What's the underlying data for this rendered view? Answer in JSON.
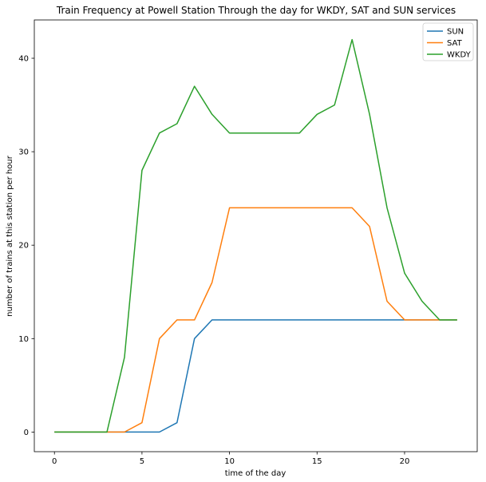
{
  "chart_data": {
    "type": "line",
    "title": "Train Frequency at Powell Station Through the day for WKDY, SAT and SUN services",
    "xlabel": "time of the day",
    "ylabel": "number of trains at this station per hour",
    "x": [
      0,
      1,
      2,
      3,
      4,
      5,
      6,
      7,
      8,
      9,
      10,
      11,
      12,
      13,
      14,
      15,
      16,
      17,
      18,
      19,
      20,
      21,
      22,
      23
    ],
    "xlim": [
      -1.15,
      24.15
    ],
    "ylim": [
      -2.1,
      44.1
    ],
    "xticks": [
      0,
      5,
      10,
      15,
      20
    ],
    "yticks": [
      0,
      10,
      20,
      30,
      40
    ],
    "grid": false,
    "legend_position": "top-right",
    "series": [
      {
        "name": "SUN",
        "color": "#1f77b4",
        "values": [
          0,
          0,
          0,
          0,
          0,
          0,
          0,
          1,
          10,
          12,
          12,
          12,
          12,
          12,
          12,
          12,
          12,
          12,
          12,
          12,
          12,
          12,
          12,
          12
        ]
      },
      {
        "name": "SAT",
        "color": "#ff7f0e",
        "values": [
          0,
          0,
          0,
          0,
          0,
          1,
          10,
          12,
          12,
          16,
          24,
          24,
          24,
          24,
          24,
          24,
          24,
          24,
          22,
          14,
          12,
          12,
          12,
          12
        ]
      },
      {
        "name": "WKDY",
        "color": "#2ca02c",
        "values": [
          0,
          0,
          0,
          0,
          8,
          28,
          32,
          33,
          37,
          34,
          32,
          32,
          32,
          32,
          32,
          34,
          35,
          42,
          34,
          24,
          17,
          14,
          12,
          12
        ]
      }
    ]
  }
}
